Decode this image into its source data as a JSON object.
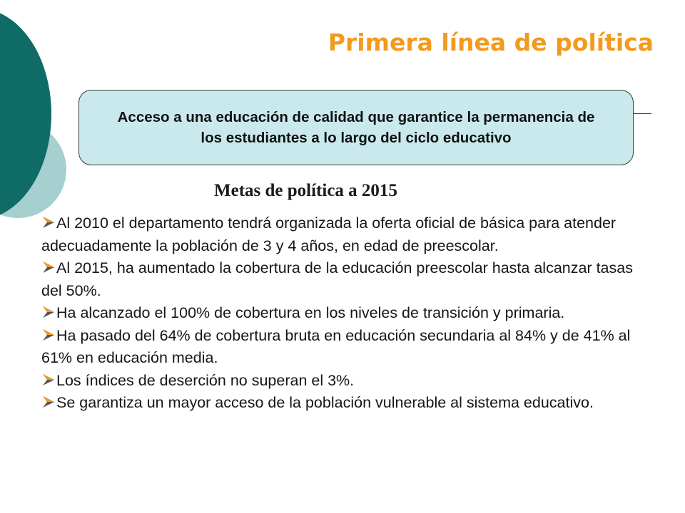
{
  "slide": {
    "title": "Primera línea de política",
    "objective": "Acceso a una educación de calidad que garantice la permanencia de los estudiantes a lo largo del ciclo educativo",
    "goals_heading": "Metas de política a 2015",
    "goals": [
      {
        "text": "Al 2010 el departamento tendrá organizada la oferta oficial de básica para atender adecuadamente la población de 3 y 4 años, en edad de preescolar."
      },
      {
        "text": "Al 2015, ha aumentado la cobertura de la educación preescolar hasta alcanzar tasas del 50%."
      },
      {
        "text": "Ha alcanzado el 100% de cobertura en los niveles de transición y primaria."
      },
      {
        "text": "Ha pasado del 64% de cobertura bruta en educación secundaria al 84% y de 41% al 61% en educación media."
      },
      {
        "text": "Los índices de deserción no superan el 3%."
      },
      {
        "text": "Se garantiza un mayor acceso de la población vulnerable al sistema educativo."
      }
    ]
  },
  "colors": {
    "title": "#f39a1e",
    "box_fill": "#c9e9ec",
    "decor_dark": "#0f6b66",
    "decor_light": "#a6cfcf",
    "bullet_orange": "#f39a1e",
    "bullet_dark": "#555555"
  },
  "icons": {
    "bullet": "arrowhead-bullet-icon"
  }
}
